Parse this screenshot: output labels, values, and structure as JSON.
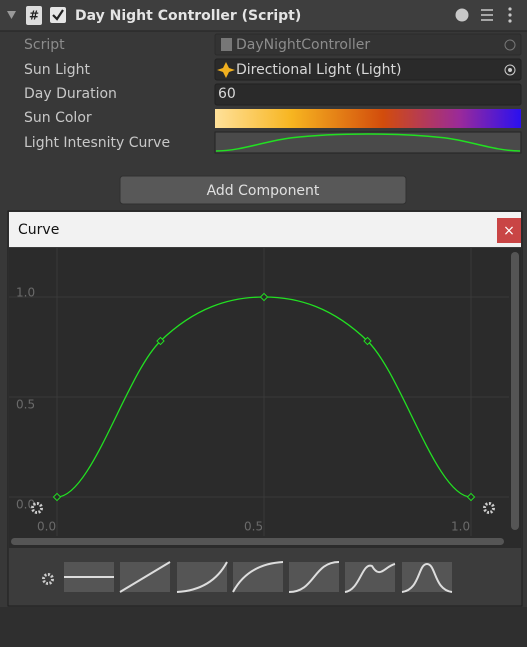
{
  "component": {
    "title": "Day Night Controller (Script)",
    "fields": [
      {
        "label": "Script",
        "value": "DayNightController"
      },
      {
        "label": "Sun Light",
        "value": "Directional Light (Light)"
      },
      {
        "label": "Day Duration",
        "value": "60"
      },
      {
        "label": "Sun Color"
      },
      {
        "label": "Light Intesnity Curve"
      }
    ]
  },
  "add_button": "Add Component",
  "curve_window": {
    "title": "Curve",
    "close": "×",
    "xticks": [
      {
        "value": 0,
        "label": "0.0"
      },
      0.5,
      {
        "value": 1,
        "label": "1.0"
      }
    ],
    "yticks": [
      {
        "value": 0,
        "label": "0.0"
      },
      0.5,
      {
        "value": 1,
        "label": "1.0"
      }
    ],
    "keys": [
      {
        "time": 0,
        "value": 0
      },
      {
        "time": 0.25,
        "value": 0.78
      },
      {
        "time": 0.5,
        "value": 1
      },
      {
        "time": 0.75,
        "value": 0.78
      },
      {
        "time": 1,
        "value": 0
      }
    ],
    "color": "#22e022"
  }
}
